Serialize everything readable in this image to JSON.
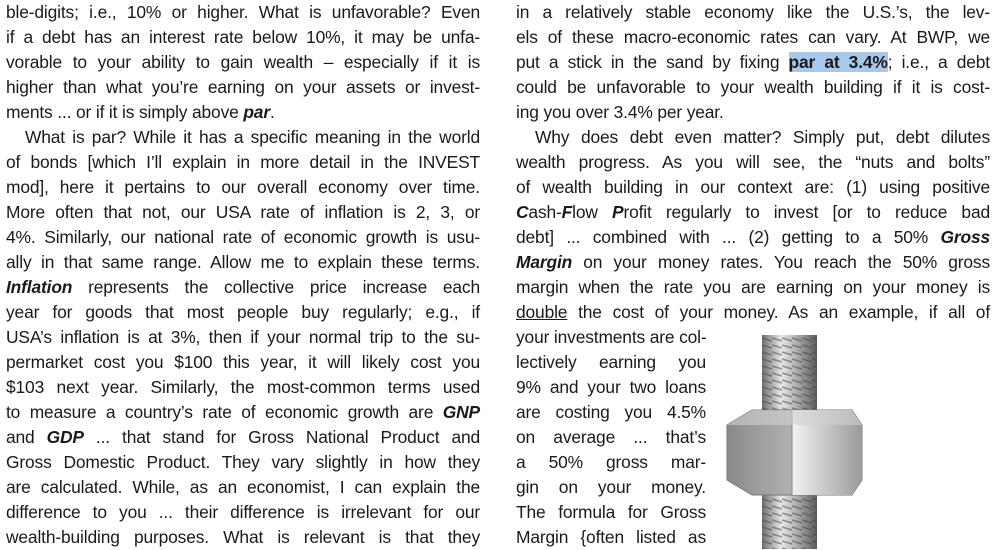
{
  "left_column": [
    {
      "segs": [
        {
          "t": "ble-digits; i.e., 10% or higher. What is unfavorable? Even"
        }
      ]
    },
    {
      "segs": [
        {
          "t": "if a debt has an interest rate below 10%, it may be unfa-"
        }
      ]
    },
    {
      "segs": [
        {
          "t": "vorable to your ability to gain wealth – especially if it is"
        }
      ]
    },
    {
      "segs": [
        {
          "t": "higher than what you’re earning on your assets or invest-"
        }
      ]
    },
    {
      "last": true,
      "segs": [
        {
          "t": "ments ... or if it is simply above "
        },
        {
          "t": "par",
          "s": "bi"
        },
        {
          "t": "."
        }
      ]
    },
    {
      "indent": true,
      "segs": [
        {
          "t": "What is par? While it has a specific meaning in the world"
        }
      ]
    },
    {
      "segs": [
        {
          "t": "of bonds [which I’ll explain in more detail in the INVEST"
        }
      ]
    },
    {
      "segs": [
        {
          "t": "mod], here it pertains to our overall economy over time."
        }
      ]
    },
    {
      "segs": [
        {
          "t": "More often that not, our USA rate of inflation is 2, 3, or"
        }
      ]
    },
    {
      "segs": [
        {
          "t": "4%. Similarly, our national rate of economic growth is usu-"
        }
      ]
    },
    {
      "segs": [
        {
          "t": "ally in that same range. Allow me to explain these terms."
        }
      ]
    },
    {
      "segs": [
        {
          "t": "Inflation",
          "s": "bi"
        },
        {
          "t": " represents the collective price increase each"
        }
      ]
    },
    {
      "segs": [
        {
          "t": "year for goods that most people buy regularly; e.g., if"
        }
      ]
    },
    {
      "segs": [
        {
          "t": "USA’s inflation is at 3%, then if your normal trip to the su-"
        }
      ]
    },
    {
      "segs": [
        {
          "t": "permarket cost you $100 this year, it will likely cost you"
        }
      ]
    },
    {
      "segs": [
        {
          "t": "$103 next year. Similarly, the most-common terms used"
        }
      ]
    },
    {
      "segs": [
        {
          "t": "to measure a country’s rate of economic growth are "
        },
        {
          "t": "GNP",
          "s": "bi"
        }
      ]
    },
    {
      "segs": [
        {
          "t": "and "
        },
        {
          "t": "GDP",
          "s": "bi"
        },
        {
          "t": " ... that stand for Gross National Product and"
        }
      ]
    },
    {
      "segs": [
        {
          "t": "Gross Domestic Product. They vary slightly in how they"
        }
      ]
    },
    {
      "segs": [
        {
          "t": "are calculated. While, as an economist, I can explain the"
        }
      ]
    },
    {
      "segs": [
        {
          "t": "difference to you ... their difference is irrelevant for our"
        }
      ]
    },
    {
      "segs": [
        {
          "t": "wealth-building purposes. What is relevant is that they"
        }
      ]
    }
  ],
  "right_column": [
    {
      "segs": [
        {
          "t": "in a relatively stable economy like the U.S.’s, the lev-"
        }
      ]
    },
    {
      "segs": [
        {
          "t": "els of these macro-economic rates can vary. At BWP, we"
        }
      ]
    },
    {
      "segs": [
        {
          "t": "put a stick in the sand by fixing "
        },
        {
          "t": "par at 3.4%",
          "s": "b hl"
        },
        {
          "t": "; i.e., a debt"
        }
      ]
    },
    {
      "segs": [
        {
          "t": "could be unfavorable to your wealth building if it is cost-"
        }
      ]
    },
    {
      "last": true,
      "segs": [
        {
          "t": "ing you over 3.4% per year."
        }
      ]
    },
    {
      "indent": true,
      "segs": [
        {
          "t": "Why does debt even matter? Simply put, debt dilutes"
        }
      ]
    },
    {
      "segs": [
        {
          "t": "wealth progress. As you will see, the “nuts and bolts”"
        }
      ]
    },
    {
      "segs": [
        {
          "t": "of wealth building in our context are: (1) using positive"
        }
      ]
    },
    {
      "segs": [
        {
          "t": "C",
          "s": "bi"
        },
        {
          "t": "ash-"
        },
        {
          "t": "F",
          "s": "bi"
        },
        {
          "t": "low "
        },
        {
          "t": "P",
          "s": "bi"
        },
        {
          "t": "rofit regularly to invest [or to reduce bad"
        }
      ]
    },
    {
      "segs": [
        {
          "t": "debt] ... combined with ... (2) getting to a 50% "
        },
        {
          "t": "Gross",
          "s": "bi"
        }
      ]
    },
    {
      "segs": [
        {
          "t": "Margin",
          "s": "bi"
        },
        {
          "t": " on your money rates. You reach the 50% gross"
        }
      ]
    },
    {
      "segs": [
        {
          "t": "margin when the rate you are earning on your money is"
        }
      ]
    },
    {
      "segs": [
        {
          "t": "double",
          "s": "u"
        },
        {
          "t": " the cost of your money. As an example, if all of"
        }
      ]
    },
    {
      "last": true,
      "segs": [
        {
          "t": "your investments are col-"
        }
      ]
    },
    {
      "narrow": true,
      "segs": [
        {
          "t": "lectively earning you"
        }
      ]
    },
    {
      "narrow": true,
      "segs": [
        {
          "t": "9% and your two loans"
        }
      ]
    },
    {
      "narrow": true,
      "segs": [
        {
          "t": "are costing you 4.5%"
        }
      ]
    },
    {
      "narrow": true,
      "segs": [
        {
          "t": "on average ... that’s"
        }
      ]
    },
    {
      "narrow": true,
      "segs": [
        {
          "t": "a 50% gross mar-"
        }
      ]
    },
    {
      "narrow": true,
      "segs": [
        {
          "t": "gin on your money."
        }
      ]
    },
    {
      "narrow": true,
      "segs": [
        {
          "t": "The formula for Gross"
        }
      ]
    },
    {
      "narrow": true,
      "segs": [
        {
          "t": "Margin {often listed as"
        }
      ]
    }
  ],
  "colors": {
    "highlight": "#a9c9ec",
    "text": "#1a1a1a"
  },
  "image": {
    "icon": "nut-and-bolt-photo"
  }
}
